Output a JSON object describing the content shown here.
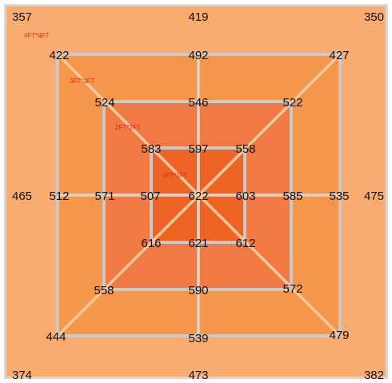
{
  "diagram": {
    "colors": {
      "frame": "#d7d7d7",
      "zone_4ft": "#f8ac70",
      "zone_3ft": "#f5974b",
      "zone_2ft": "#f17a44",
      "zone_1ft": "#ef6424",
      "grid_line": "#c9c9c9",
      "diagonal_line": "#fcc99a",
      "zone_label": "#e8221b",
      "value_text": "#111111"
    },
    "zone_labels": [
      "4FT*4FT",
      "3FT*3FT",
      "2FT*2FT",
      "1FT*1FT"
    ],
    "outer": {
      "top_left": "357",
      "top_middle": "419",
      "top_right": "350",
      "left_middle": "465",
      "right_middle": "475",
      "bottom_left": "374",
      "bottom_middle": "473",
      "bottom_right": "382"
    },
    "ring_4ft": {
      "top_left": "422",
      "top_middle": "492",
      "top_right": "427",
      "left_middle": "512",
      "right_middle": "535",
      "bottom_left": "444",
      "bottom_middle": "539",
      "bottom_right": "479"
    },
    "ring_3ft": {
      "top_left": "524",
      "top_middle": "546",
      "top_right": "522",
      "left_middle": "571",
      "right_middle": "585",
      "bottom_left": "558",
      "bottom_middle": "590",
      "bottom_right": "572"
    },
    "ring_2ft": {
      "top_left": "583",
      "top_middle": "597",
      "top_right": "558",
      "left_middle": "507",
      "right_middle": "603",
      "bottom_left": "616",
      "bottom_middle": "621",
      "bottom_right": "612"
    },
    "center": "622"
  }
}
